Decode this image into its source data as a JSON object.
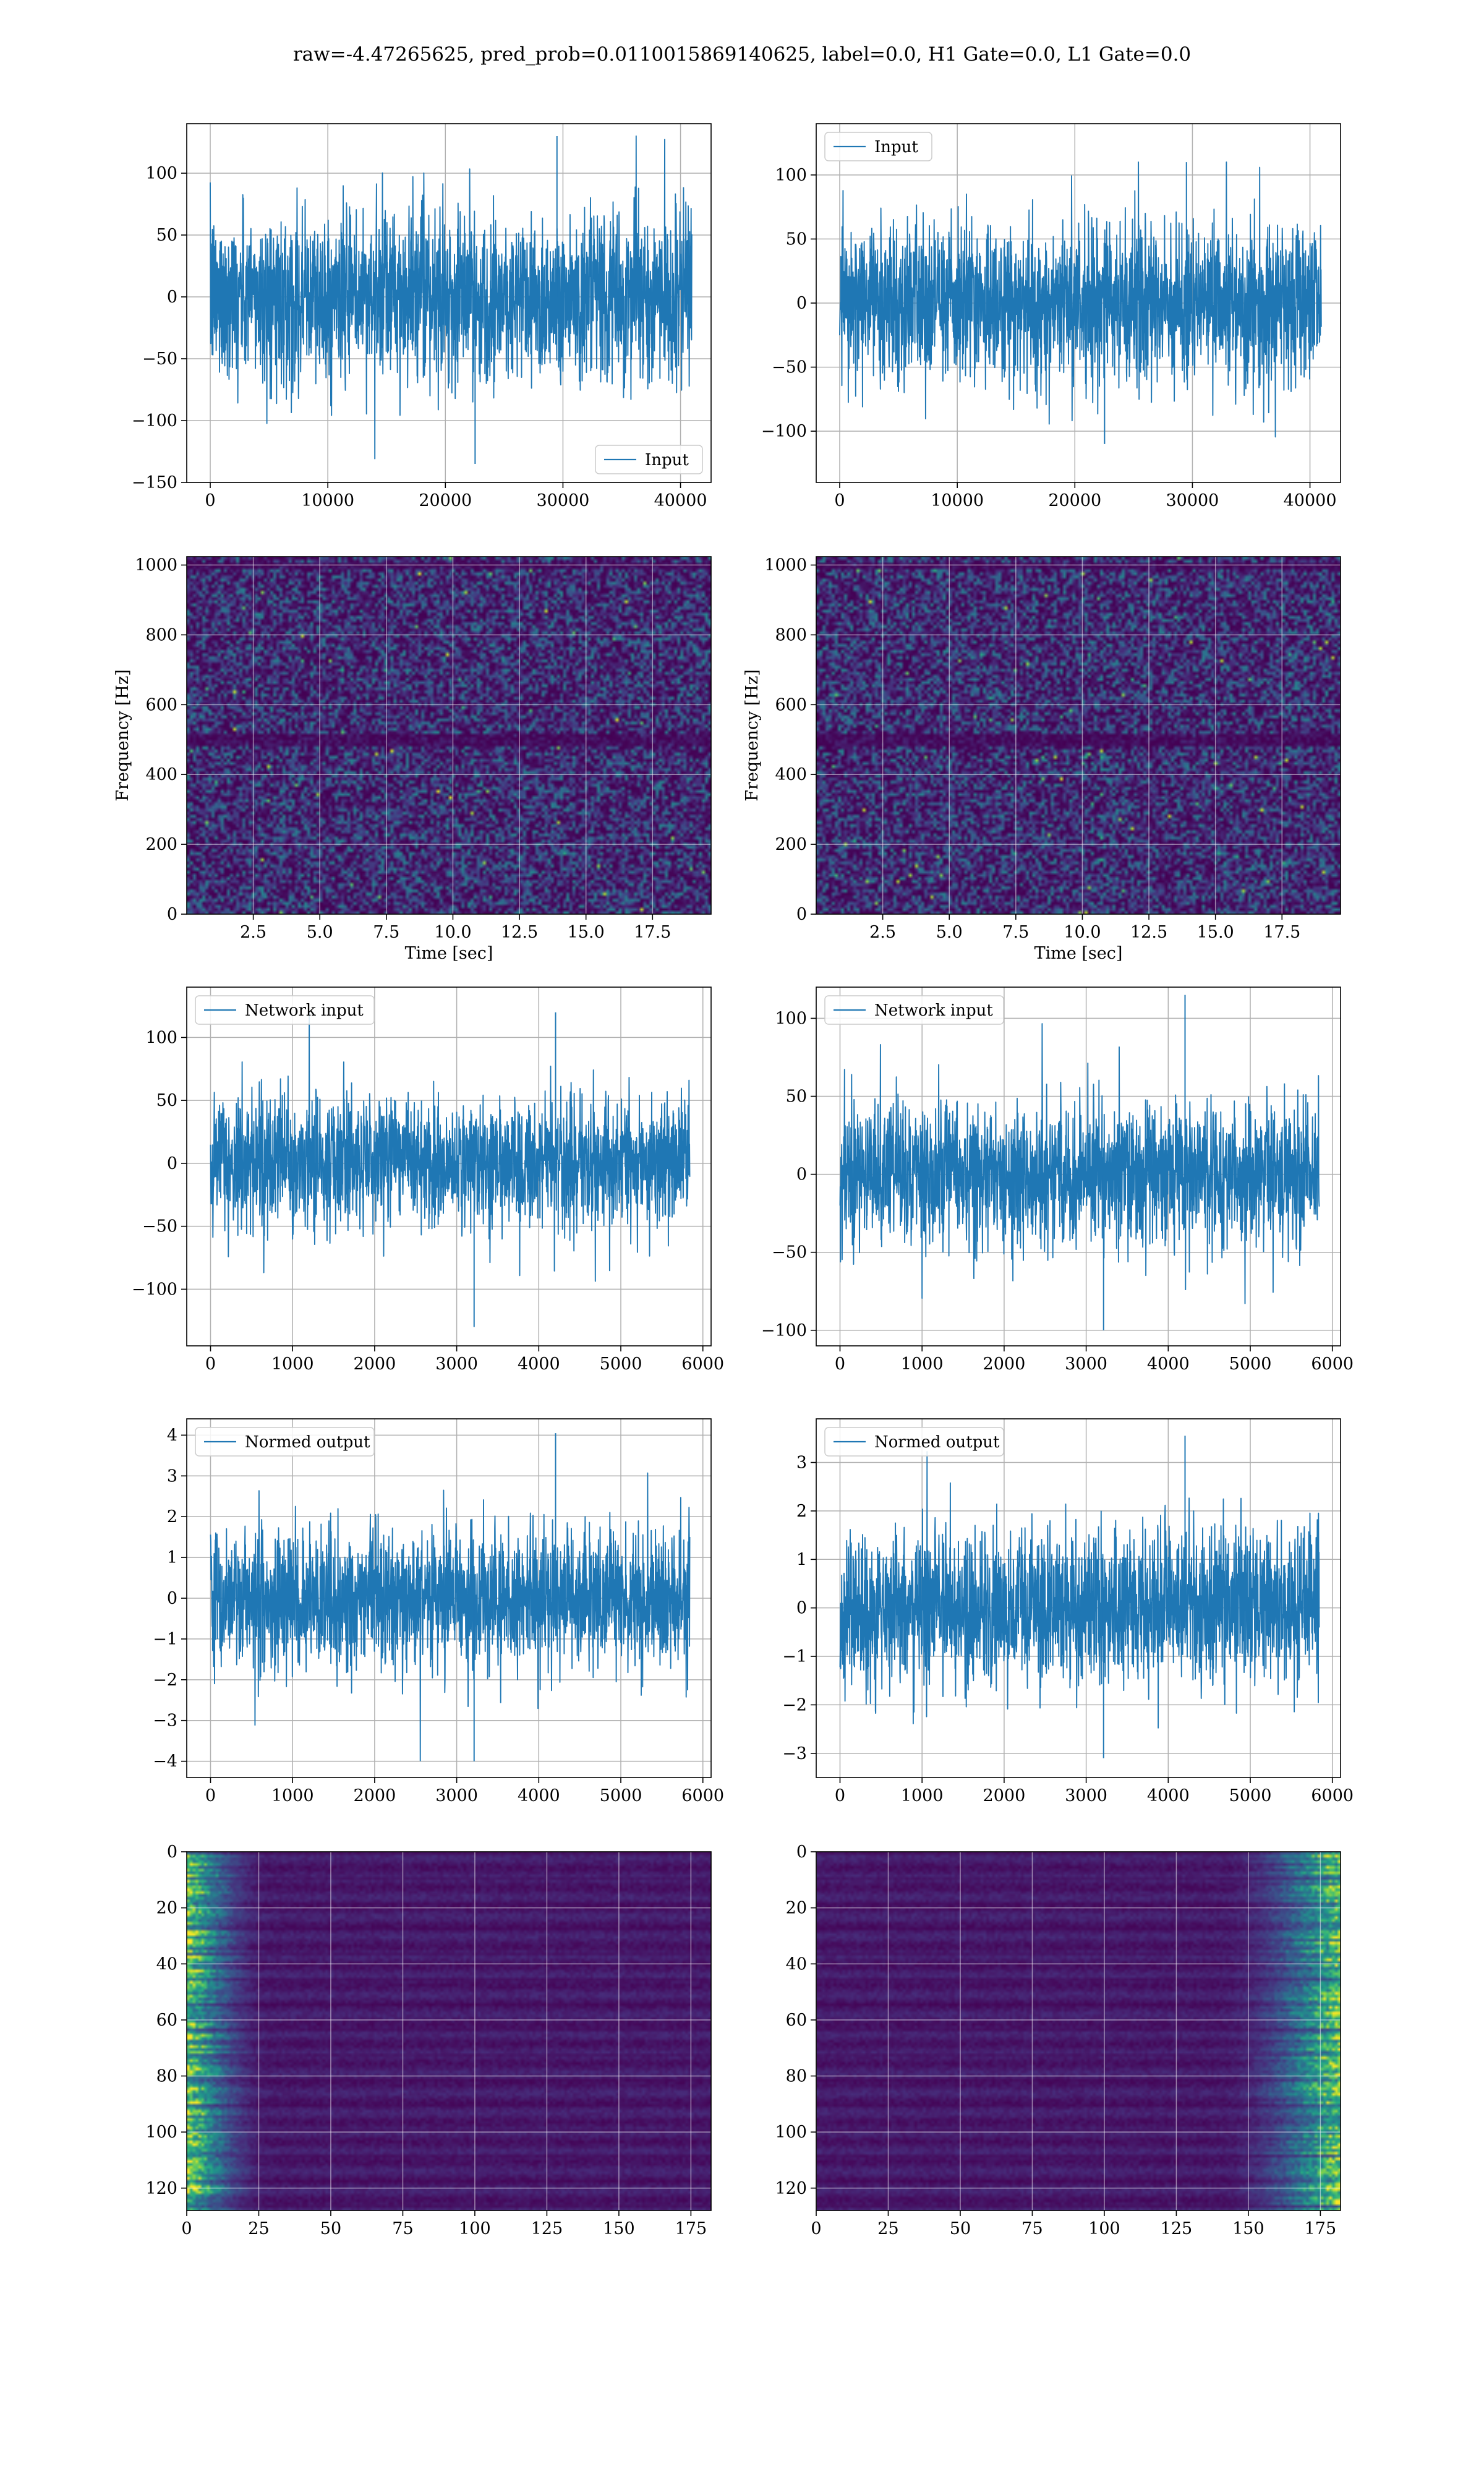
{
  "figure": {
    "title": "raw=-4.47265625, pred_prob=0.0110015869140625, label=0.0, H1 Gate=0.0, L1 Gate=0.0"
  },
  "colors": {
    "line": "#1f77b4",
    "grid": "#b0b0b0",
    "viridis": [
      "#440154",
      "#472d7b",
      "#3b528b",
      "#2c728e",
      "#21918c",
      "#28ae80",
      "#5ec962",
      "#addc30",
      "#fde725"
    ]
  },
  "chart_data": [
    {
      "id": "raw-h1",
      "type": "line",
      "title": "",
      "xlabel": "",
      "ylabel": "",
      "xlim": [
        -2000,
        42600
      ],
      "ylim": [
        -150,
        140
      ],
      "xticks": [
        0,
        10000,
        20000,
        30000,
        40000
      ],
      "yticks": [
        -150,
        -100,
        -50,
        0,
        50,
        100
      ],
      "grid": true,
      "legend": "lower right",
      "series": [
        {
          "name": "Input",
          "n_samples": 40960,
          "x_range": [
            0,
            40960
          ],
          "envelope": [
            -135,
            130
          ],
          "band": [
            -60,
            60
          ]
        }
      ]
    },
    {
      "id": "raw-l1",
      "type": "line",
      "title": "",
      "xlabel": "",
      "ylabel": "",
      "xlim": [
        -2000,
        42600
      ],
      "ylim": [
        -140,
        140
      ],
      "xticks": [
        0,
        10000,
        20000,
        30000,
        40000
      ],
      "yticks": [
        -100,
        -50,
        0,
        50,
        100
      ],
      "grid": true,
      "legend": "upper left",
      "series": [
        {
          "name": "Input",
          "n_samples": 40960,
          "x_range": [
            0,
            40960
          ],
          "envelope": [
            -110,
            110
          ],
          "band": [
            -55,
            55
          ]
        }
      ]
    },
    {
      "id": "spec-h1",
      "type": "heatmap",
      "title": "",
      "xlabel": "Time [sec]",
      "ylabel": "Frequency [Hz]",
      "xlim": [
        0,
        19.7
      ],
      "ylim": [
        0,
        1024
      ],
      "xticks": [
        2.5,
        5.0,
        7.5,
        10.0,
        12.5,
        15.0,
        17.5
      ],
      "yticks": [
        0,
        200,
        400,
        600,
        800,
        1000
      ],
      "grid": true,
      "colormap": "viridis",
      "notes": "mostly dark purple noise; dark horizontal bands near 500 Hz and 1000 Hz"
    },
    {
      "id": "spec-l1",
      "type": "heatmap",
      "title": "",
      "xlabel": "Time [sec]",
      "ylabel": "Frequency [Hz]",
      "xlim": [
        0,
        19.7
      ],
      "ylim": [
        0,
        1024
      ],
      "xticks": [
        2.5,
        5.0,
        7.5,
        10.0,
        12.5,
        15.0,
        17.5
      ],
      "yticks": [
        0,
        200,
        400,
        600,
        800,
        1000
      ],
      "grid": true,
      "colormap": "viridis",
      "notes": "mostly dark purple noise; dark horizontal bands near 500 Hz and 1000 Hz"
    },
    {
      "id": "net-h1",
      "type": "line",
      "title": "",
      "xlabel": "",
      "ylabel": "",
      "xlim": [
        -290,
        6100
      ],
      "ylim": [
        -145,
        140
      ],
      "xticks": [
        0,
        1000,
        2000,
        3000,
        4000,
        5000,
        6000
      ],
      "yticks": [
        -100,
        -50,
        0,
        50,
        100
      ],
      "grid": true,
      "legend": "upper left",
      "series": [
        {
          "name": "Network input",
          "n_samples": 5840,
          "x_range": [
            0,
            5840
          ],
          "envelope": [
            -130,
            120
          ],
          "band": [
            -45,
            45
          ]
        }
      ]
    },
    {
      "id": "net-l1",
      "type": "line",
      "title": "",
      "xlabel": "",
      "ylabel": "",
      "xlim": [
        -290,
        6100
      ],
      "ylim": [
        -110,
        120
      ],
      "xticks": [
        0,
        1000,
        2000,
        3000,
        4000,
        5000,
        6000
      ],
      "yticks": [
        -100,
        -50,
        0,
        50,
        100
      ],
      "grid": true,
      "legend": "upper left",
      "series": [
        {
          "name": "Network input",
          "n_samples": 5840,
          "x_range": [
            0,
            5840
          ],
          "envelope": [
            -100,
            115
          ],
          "band": [
            -40,
            40
          ]
        }
      ]
    },
    {
      "id": "norm-h1",
      "type": "line",
      "title": "",
      "xlabel": "",
      "ylabel": "",
      "xlim": [
        -290,
        6100
      ],
      "ylim": [
        -4.4,
        4.4
      ],
      "xticks": [
        0,
        1000,
        2000,
        3000,
        4000,
        5000,
        6000
      ],
      "yticks": [
        -4,
        -3,
        -2,
        -1,
        0,
        1,
        2,
        3,
        4
      ],
      "grid": true,
      "legend": "upper left",
      "series": [
        {
          "name": "Normed output",
          "n_samples": 5840,
          "x_range": [
            0,
            5840
          ],
          "envelope": [
            -4.0,
            4.05
          ],
          "band": [
            -1.5,
            1.5
          ]
        }
      ]
    },
    {
      "id": "norm-l1",
      "type": "line",
      "title": "",
      "xlabel": "",
      "ylabel": "",
      "xlim": [
        -290,
        6100
      ],
      "ylim": [
        -3.5,
        3.9
      ],
      "xticks": [
        0,
        1000,
        2000,
        3000,
        4000,
        5000,
        6000
      ],
      "yticks": [
        -3,
        -2,
        -1,
        0,
        1,
        2,
        3
      ],
      "grid": true,
      "legend": "upper left",
      "series": [
        {
          "name": "Normed output",
          "n_samples": 5840,
          "x_range": [
            0,
            5840
          ],
          "envelope": [
            -3.1,
            3.55
          ],
          "band": [
            -1.4,
            1.4
          ]
        }
      ]
    },
    {
      "id": "feat-h1",
      "type": "heatmap",
      "title": "",
      "xlabel": "",
      "ylabel": "",
      "xlim": [
        0,
        182
      ],
      "ylim": [
        128,
        0
      ],
      "xticks": [
        0,
        25,
        50,
        75,
        100,
        125,
        150,
        175
      ],
      "yticks": [
        0,
        20,
        40,
        60,
        80,
        100,
        120
      ],
      "grid": true,
      "colormap": "viridis",
      "notes": "128 rows x 182 columns; bright yellow-green activations concentrated at columns 0-25"
    },
    {
      "id": "feat-l1",
      "type": "heatmap",
      "title": "",
      "xlabel": "",
      "ylabel": "",
      "xlim": [
        0,
        182
      ],
      "ylim": [
        128,
        0
      ],
      "xticks": [
        0,
        25,
        50,
        75,
        100,
        125,
        150,
        175
      ],
      "yticks": [
        0,
        20,
        40,
        60,
        80,
        100,
        120
      ],
      "grid": true,
      "colormap": "viridis",
      "notes": "128 rows x 182 columns; bright yellow-green activations concentrated at columns 140-182"
    }
  ]
}
